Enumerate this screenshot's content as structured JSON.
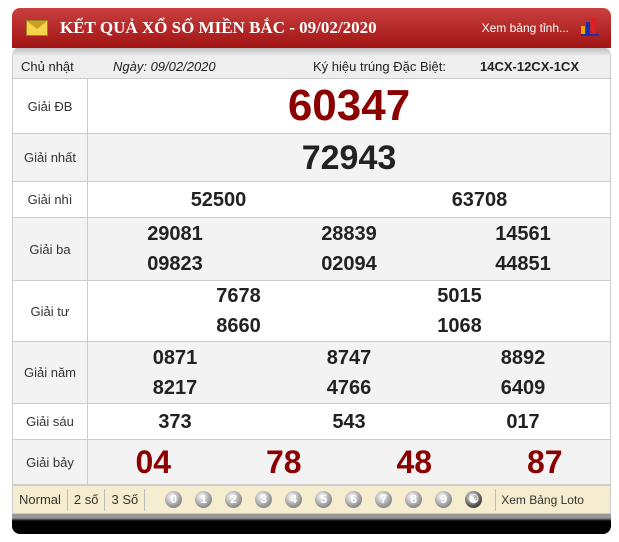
{
  "header": {
    "title": "KẾT QUẢ XỔ SỐ MIỀN BẮC - 09/02/2020",
    "view_table": "Xem bảng tỉnh..."
  },
  "info": {
    "weekday": "Chủ nhật",
    "date": "Ngày: 09/02/2020",
    "special_code_label": "Ký hiệu trúng Đặc Biệt:",
    "special_code": "14CX-12CX-1CX"
  },
  "prizes": [
    {
      "label": "Giải ĐB",
      "numbers": [
        "60347"
      ]
    },
    {
      "label": "Giải nhất",
      "numbers": [
        "72943"
      ]
    },
    {
      "label": "Giải nhì",
      "numbers": [
        "52500",
        "63708"
      ]
    },
    {
      "label": "Giải ba",
      "numbers": [
        "29081",
        "28839",
        "14561",
        "09823",
        "02094",
        "44851"
      ]
    },
    {
      "label": "Giải tư",
      "numbers": [
        "7678",
        "5015",
        "8660",
        "1068"
      ]
    },
    {
      "label": "Giải năm",
      "numbers": [
        "0871",
        "8747",
        "8892",
        "8217",
        "4766",
        "6409"
      ]
    },
    {
      "label": "Giải sáu",
      "numbers": [
        "373",
        "543",
        "017"
      ]
    },
    {
      "label": "Giải bảy",
      "numbers": [
        "04",
        "78",
        "48",
        "87"
      ]
    }
  ],
  "footer": {
    "modes": [
      "Normal",
      "2 số",
      "3 Số"
    ],
    "digits": [
      "0",
      "1",
      "2",
      "3",
      "4",
      "5",
      "6",
      "7",
      "8",
      "9"
    ],
    "loto": "Xem Bảng Loto"
  },
  "colors": {
    "header": "#a11414",
    "special": "#8b0000"
  }
}
